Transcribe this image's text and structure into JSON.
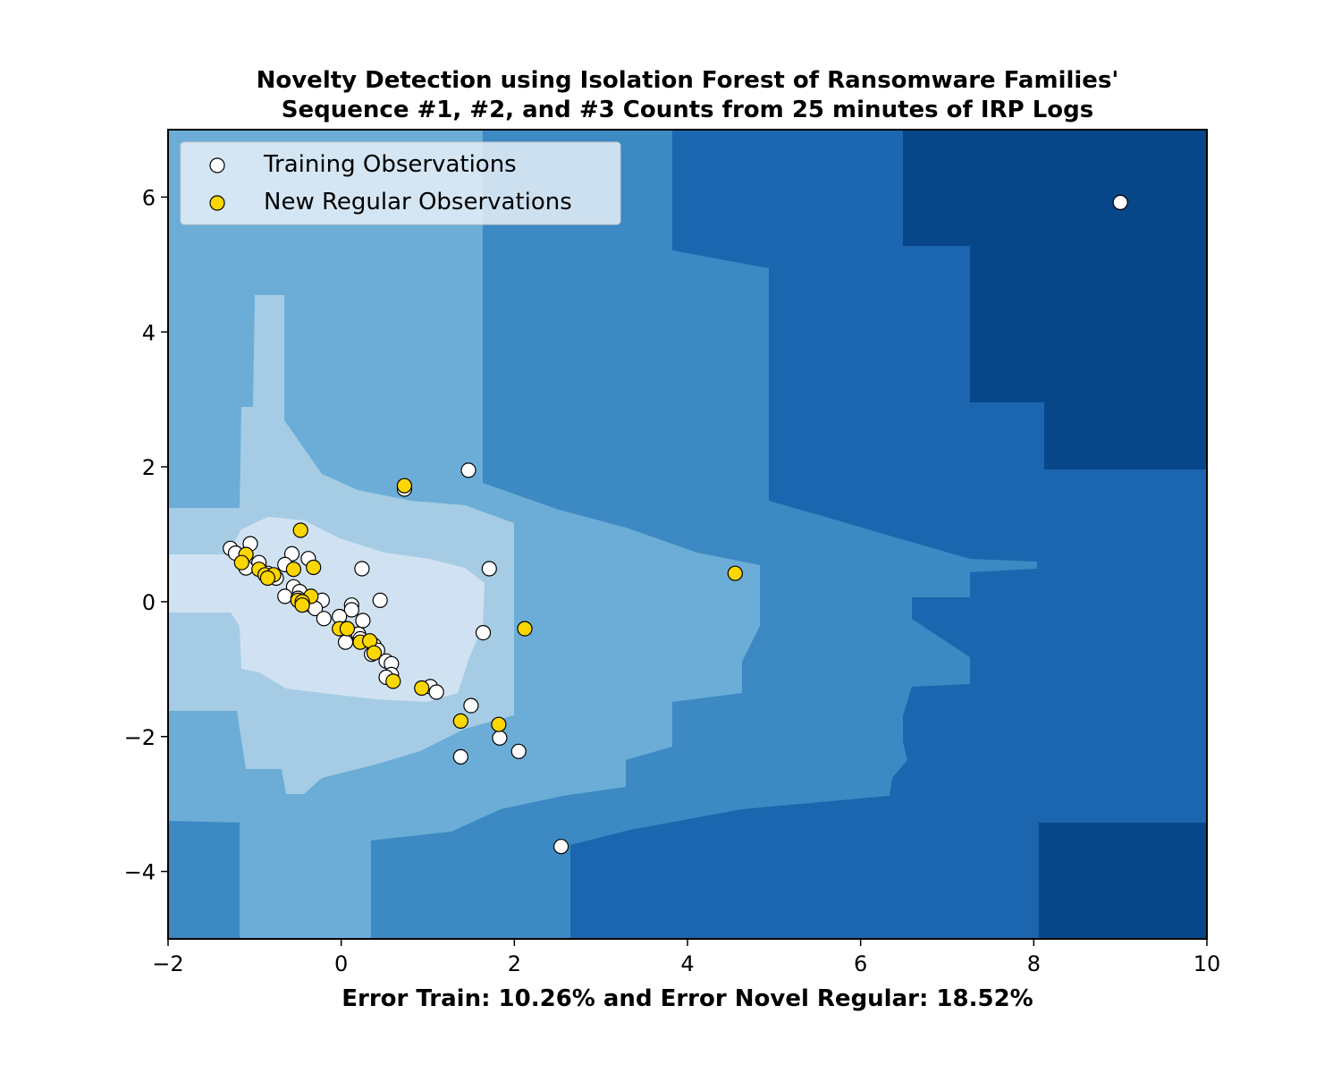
{
  "chart_data": {
    "type": "scatter",
    "title": [
      "Novelty Detection using Isolation Forest of Ransomware Families'",
      "Sequence #1, #2, and #3 Counts from 25 minutes of IRP Logs"
    ],
    "xlabel": "Error Train: 10.26% and Error Novel Regular: 18.52%",
    "ylabel": "",
    "xlim": [
      -2,
      10
    ],
    "ylim": [
      -5,
      7
    ],
    "x_ticks": [
      -2,
      0,
      2,
      4,
      6,
      8,
      10
    ],
    "y_ticks": [
      -4,
      -2,
      0,
      2,
      4,
      6
    ],
    "x_tick_labels": [
      "−2",
      "0",
      "2",
      "4",
      "6",
      "8",
      "10"
    ],
    "y_tick_labels": [
      "−4",
      "−2",
      "0",
      "2",
      "4",
      "6"
    ],
    "grid": false,
    "legend_position": "top-left",
    "background": "decision-function contour (Blues colormap)",
    "contour_colors": [
      "#08468a",
      "#1b66ae",
      "#3c89c3",
      "#6badd7",
      "#a5cce4",
      "#d0e2f2"
    ],
    "series": [
      {
        "name": "Training Observations",
        "color": "#ffffff",
        "edge_color": "#000000",
        "points": [
          [
            9.0,
            5.92
          ],
          [
            1.47,
            1.95
          ],
          [
            0.73,
            1.67
          ],
          [
            1.71,
            0.49
          ],
          [
            0.24,
            0.49
          ],
          [
            0.45,
            0.02
          ],
          [
            1.64,
            -0.46
          ],
          [
            -1.28,
            0.79
          ],
          [
            -1.22,
            0.72
          ],
          [
            -1.05,
            0.86
          ],
          [
            -0.57,
            0.71
          ],
          [
            -0.38,
            0.64
          ],
          [
            -0.95,
            0.58
          ],
          [
            -0.65,
            0.55
          ],
          [
            -1.1,
            0.5
          ],
          [
            -0.85,
            0.42
          ],
          [
            -0.75,
            0.35
          ],
          [
            -0.55,
            0.22
          ],
          [
            -0.48,
            0.15
          ],
          [
            -0.65,
            0.08
          ],
          [
            -0.5,
            0.05
          ],
          [
            -0.22,
            0.02
          ],
          [
            -0.35,
            -0.05
          ],
          [
            -0.3,
            -0.1
          ],
          [
            0.12,
            -0.05
          ],
          [
            0.12,
            -0.12
          ],
          [
            -0.2,
            -0.25
          ],
          [
            0.25,
            -0.28
          ],
          [
            -0.02,
            -0.22
          ],
          [
            0.05,
            -0.4
          ],
          [
            0.2,
            -0.48
          ],
          [
            0.22,
            -0.55
          ],
          [
            0.05,
            -0.6
          ],
          [
            0.38,
            -0.65
          ],
          [
            0.42,
            -0.72
          ],
          [
            0.35,
            -0.78
          ],
          [
            0.52,
            -0.88
          ],
          [
            0.58,
            -0.92
          ],
          [
            0.58,
            -1.08
          ],
          [
            0.52,
            -1.12
          ],
          [
            1.03,
            -1.26
          ],
          [
            1.1,
            -1.34
          ],
          [
            1.5,
            -1.54
          ],
          [
            1.38,
            -2.3
          ],
          [
            1.83,
            -2.02
          ],
          [
            2.05,
            -2.22
          ],
          [
            2.54,
            -3.63
          ]
        ]
      },
      {
        "name": "New Regular Observations",
        "color": "#ffd700",
        "edge_color": "#000000",
        "points": [
          [
            0.73,
            1.72
          ],
          [
            -0.47,
            1.06
          ],
          [
            4.55,
            0.42
          ],
          [
            2.12,
            -0.4
          ],
          [
            -1.1,
            0.7
          ],
          [
            -1.15,
            0.58
          ],
          [
            -0.95,
            0.48
          ],
          [
            -0.88,
            0.4
          ],
          [
            -0.78,
            0.4
          ],
          [
            -0.55,
            0.48
          ],
          [
            -0.32,
            0.51
          ],
          [
            -0.85,
            0.35
          ],
          [
            -0.35,
            0.08
          ],
          [
            -0.5,
            0.02
          ],
          [
            -0.45,
            0.0
          ],
          [
            -0.45,
            -0.05
          ],
          [
            -0.02,
            -0.4
          ],
          [
            0.07,
            -0.4
          ],
          [
            0.22,
            -0.6
          ],
          [
            0.33,
            -0.58
          ],
          [
            0.38,
            -0.76
          ],
          [
            0.6,
            -1.18
          ],
          [
            0.93,
            -1.28
          ],
          [
            1.38,
            -1.77
          ],
          [
            1.82,
            -1.82
          ]
        ]
      }
    ]
  }
}
